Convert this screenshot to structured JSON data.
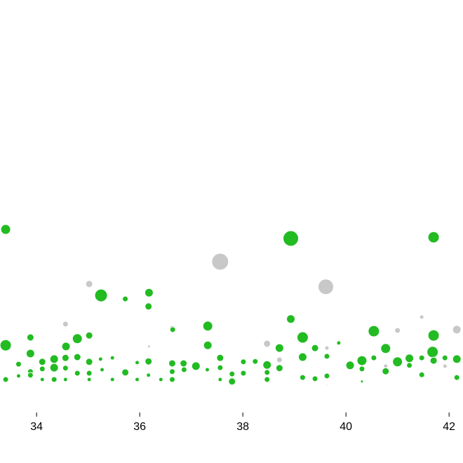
{
  "chart_data": {
    "type": "bubble",
    "xlim": [
      33.29,
      42.27
    ],
    "ylim": [
      0,
      100
    ],
    "xticks": [
      34,
      36,
      38,
      40,
      42
    ],
    "series": [
      {
        "color": "#c8c8c8",
        "x": [
          37.56,
          39.61,
          35.02,
          34.56,
          36.63,
          38.47,
          41.0,
          42.15,
          41.47,
          36.18,
          38.71,
          39.63,
          41.92,
          40.77,
          35.02,
          39.63
        ],
        "values": [
          33.4,
          27.0,
          27.7,
          17.5,
          16.4,
          12.5,
          15.9,
          16.1,
          19.3,
          11.8,
          8.4,
          11.4,
          6.8,
          6.8,
          2.3,
          2.1
        ],
        "sizes": [
          12,
          11,
          5,
          4,
          4,
          5,
          4,
          6,
          3,
          2,
          4,
          3,
          3,
          3,
          1,
          1
        ]
      },
      {
        "color": "#22bb22",
        "x": [
          33.4,
          38.93,
          41.7,
          35.25,
          36.18,
          35.72,
          36.17,
          33.4,
          37.32,
          38.93,
          40.54,
          41.7,
          34.79,
          35.02,
          34.57,
          39.16,
          37.32,
          38.71,
          39.4,
          39.86,
          40.77,
          41.68,
          33.88,
          33.88,
          34.34,
          33.65,
          34.11,
          34.79,
          35.02,
          34.56,
          35.24,
          35.47,
          35.95,
          36.17,
          36.63,
          36.85,
          37.09,
          37.56,
          38.01,
          38.24,
          38.47,
          38.71,
          39.16,
          39.63,
          40.08,
          40.31,
          40.54,
          41.0,
          41.23,
          41.47,
          41.92,
          42.15,
          41.7,
          33.88,
          34.11,
          34.34,
          34.56,
          35.02,
          35.27,
          35.72,
          36.63,
          36.86,
          37.31,
          37.56,
          37.79,
          38.01,
          38.47,
          40.31,
          40.77,
          41.23,
          33.4,
          33.88,
          34.11,
          34.34,
          34.56,
          34.79,
          35.02,
          35.47,
          35.95,
          36.17,
          36.41,
          36.63,
          37.56,
          37.79,
          38.47,
          39.16,
          39.4,
          39.63,
          40.31,
          41.47,
          42.15,
          33.65,
          36.64
        ],
        "values": [
          41.6,
          39.3,
          39.6,
          24.8,
          25.5,
          23.9,
          22.0,
          12.1,
          17.0,
          18.8,
          15.7,
          14.6,
          13.8,
          14.6,
          11.8,
          14.1,
          12.1,
          11.4,
          11.4,
          12.7,
          11.3,
          10.4,
          14.1,
          10.0,
          8.6,
          7.3,
          7.9,
          9.1,
          7.9,
          8.9,
          8.6,
          8.9,
          7.7,
          8.0,
          7.5,
          7.5,
          6.8,
          8.9,
          7.9,
          8.0,
          7.1,
          6.3,
          9.1,
          9.3,
          7.0,
          8.2,
          8.9,
          7.9,
          8.8,
          8.9,
          8.9,
          8.6,
          8.2,
          5.4,
          6.1,
          6.4,
          6.3,
          5.0,
          5.9,
          5.2,
          5.4,
          5.9,
          5.9,
          6.4,
          4.8,
          5.0,
          5.2,
          6.1,
          5.5,
          7.0,
          3.4,
          4.5,
          3.4,
          3.4,
          3.4,
          5.0,
          3.4,
          3.4,
          3.4,
          4.5,
          3.4,
          3.4,
          3.4,
          2.9,
          3.4,
          3.9,
          3.6,
          4.3,
          2.9,
          4.6,
          3.9,
          4.3,
          16.1
        ],
        "sizes": [
          7,
          11,
          8,
          9,
          6,
          4,
          5,
          8,
          7,
          6,
          8,
          8,
          7,
          5,
          6,
          8,
          6,
          6,
          5,
          3,
          7,
          8,
          5,
          6,
          6,
          4,
          5,
          5,
          5,
          5,
          3,
          3,
          3,
          5,
          5,
          5,
          6,
          5,
          4,
          4,
          6,
          5,
          6,
          4,
          6,
          7,
          4,
          7,
          6,
          4,
          4,
          6,
          5,
          4,
          4,
          6,
          4,
          4,
          3,
          5,
          4,
          4,
          3,
          4,
          4,
          4,
          4,
          4,
          5,
          4,
          4,
          4,
          3,
          4,
          3,
          4,
          3,
          3,
          3,
          3,
          3,
          4,
          3,
          5,
          4,
          4,
          4,
          4,
          2,
          4,
          4,
          3,
          4
        ]
      }
    ]
  }
}
